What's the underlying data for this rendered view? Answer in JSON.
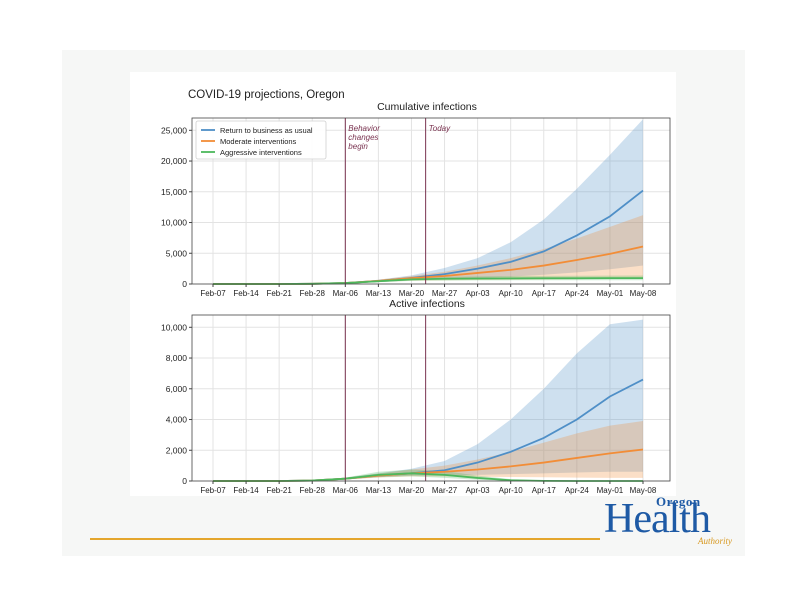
{
  "figure_title": "COVID-19 projections, Oregon",
  "logo": {
    "top": "Oregon",
    "main": "Health",
    "bottom": "Authority"
  },
  "colors": {
    "business_as_usual": "#4f8fc7",
    "moderate": "#f28d37",
    "aggressive": "#4cb85c",
    "event_line": "#7a3350",
    "footer_rule": "#e4a62d",
    "logo_blue": "#1e5aa5"
  },
  "chart_data": [
    {
      "type": "line",
      "title": "Cumulative infections",
      "xlabel": "",
      "ylabel": "",
      "x": [
        "Feb-07",
        "Feb-14",
        "Feb-21",
        "Feb-28",
        "Mar-06",
        "Mar-13",
        "Mar-20",
        "Mar-27",
        "Apr-03",
        "Apr-10",
        "Apr-17",
        "Apr-24",
        "May-01",
        "May-08"
      ],
      "ylim": [
        0,
        27000
      ],
      "yticks": [
        0,
        5000,
        10000,
        15000,
        20000,
        25000
      ],
      "ytick_labels": [
        "0",
        "5,000",
        "10,000",
        "15,000",
        "20,000",
        "25,000"
      ],
      "grid": true,
      "legend_position": "top-left",
      "series": [
        {
          "name": "Return to business as usual",
          "color_key": "business_as_usual",
          "values": [
            0,
            0,
            0,
            30,
            150,
            500,
            1000,
            1600,
            2500,
            3600,
            5300,
            7900,
            11000,
            15200
          ],
          "band_low": [
            0,
            0,
            0,
            20,
            100,
            300,
            600,
            800,
            1000,
            1200,
            1500,
            1900,
            2400,
            3000
          ],
          "band_high": [
            0,
            0,
            0,
            40,
            220,
            700,
            1400,
            2600,
            4200,
            6800,
            10500,
            15500,
            21000,
            26800
          ]
        },
        {
          "name": "Moderate interventions",
          "color_key": "moderate",
          "values": [
            0,
            0,
            0,
            30,
            150,
            500,
            950,
            1300,
            1800,
            2300,
            3000,
            3900,
            4900,
            6100
          ],
          "band_low": [
            0,
            0,
            0,
            20,
            100,
            300,
            550,
            600,
            650,
            700,
            750,
            800,
            850,
            900
          ],
          "band_high": [
            0,
            0,
            0,
            40,
            220,
            700,
            1300,
            2000,
            3000,
            4200,
            5700,
            7400,
            9300,
            11200
          ]
        },
        {
          "name": "Aggressive interventions",
          "color_key": "aggressive",
          "values": [
            0,
            0,
            0,
            30,
            150,
            450,
            750,
            850,
            900,
            920,
            930,
            940,
            950,
            950
          ],
          "band_low": [
            0,
            0,
            0,
            20,
            100,
            300,
            500,
            550,
            580,
            600,
            610,
            620,
            620,
            620
          ],
          "band_high": [
            0,
            0,
            0,
            40,
            200,
            600,
            1000,
            1150,
            1250,
            1300,
            1330,
            1350,
            1370,
            1380
          ]
        }
      ],
      "annotations": [
        {
          "x": "Mar-06",
          "label_lines": [
            "Behavior",
            "changes",
            "begin"
          ]
        },
        {
          "x": "Mar-23",
          "label_lines": [
            "Today"
          ]
        }
      ]
    },
    {
      "type": "line",
      "title": "Active infections",
      "xlabel": "",
      "ylabel": "",
      "x": [
        "Feb-07",
        "Feb-14",
        "Feb-21",
        "Feb-28",
        "Mar-06",
        "Mar-13",
        "Mar-20",
        "Mar-27",
        "Apr-03",
        "Apr-10",
        "Apr-17",
        "Apr-24",
        "May-01",
        "May-08"
      ],
      "ylim": [
        0,
        10800
      ],
      "yticks": [
        0,
        2000,
        4000,
        6000,
        8000,
        10000
      ],
      "ytick_labels": [
        "0",
        "2,000",
        "4,000",
        "6,000",
        "8,000",
        "10,000"
      ],
      "grid": true,
      "series": [
        {
          "name": "Return to business as usual",
          "color_key": "business_as_usual",
          "values": [
            0,
            0,
            0,
            30,
            150,
            350,
            500,
            700,
            1200,
            1900,
            2800,
            4000,
            5500,
            6600
          ],
          "band_low": [
            0,
            0,
            0,
            20,
            100,
            250,
            350,
            350,
            400,
            450,
            500,
            550,
            600,
            600
          ],
          "band_high": [
            0,
            0,
            0,
            40,
            220,
            500,
            800,
            1300,
            2400,
            4000,
            6000,
            8300,
            10200,
            10500
          ]
        },
        {
          "name": "Moderate interventions",
          "color_key": "moderate",
          "values": [
            0,
            0,
            0,
            30,
            150,
            350,
            500,
            600,
            750,
            950,
            1200,
            1500,
            1800,
            2050
          ],
          "band_low": [
            0,
            0,
            0,
            20,
            100,
            220,
            300,
            300,
            280,
            260,
            240,
            220,
            200,
            200
          ],
          "band_high": [
            0,
            0,
            0,
            40,
            220,
            480,
            750,
            1000,
            1400,
            1900,
            2500,
            3100,
            3600,
            3900
          ]
        },
        {
          "name": "Aggressive interventions",
          "color_key": "aggressive",
          "values": [
            0,
            0,
            0,
            30,
            150,
            400,
            500,
            400,
            200,
            50,
            10,
            0,
            0,
            0
          ],
          "band_low": [
            0,
            0,
            0,
            20,
            100,
            250,
            300,
            200,
            80,
            10,
            0,
            0,
            0,
            0
          ],
          "band_high": [
            0,
            0,
            0,
            40,
            220,
            600,
            750,
            650,
            350,
            120,
            30,
            0,
            0,
            0
          ]
        }
      ],
      "annotations": [
        {
          "x": "Mar-06",
          "label_lines": []
        },
        {
          "x": "Mar-23",
          "label_lines": []
        }
      ]
    }
  ]
}
